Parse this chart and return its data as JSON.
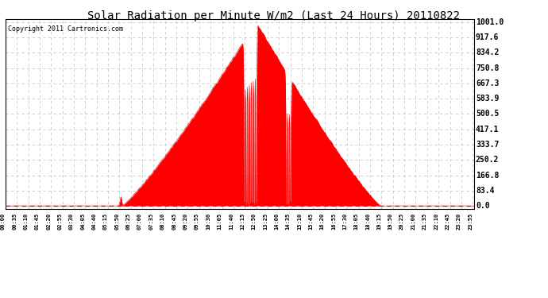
{
  "title": "Solar Radiation per Minute W/m2 (Last 24 Hours) 20110822",
  "copyright_text": "Copyright 2011 Cartronics.com",
  "background_color": "#ffffff",
  "plot_bg_color": "#ffffff",
  "bar_color": "#ff0000",
  "dashed_line_color": "#ff0000",
  "grid_color": "#c8c8c8",
  "yticks": [
    0.0,
    83.4,
    166.8,
    250.2,
    333.7,
    417.1,
    500.5,
    583.9,
    667.3,
    750.8,
    834.2,
    917.6,
    1001.0
  ],
  "ymax": 1001.0,
  "ymin": 0.0,
  "total_minutes": 1440,
  "sunrise_minute": 358,
  "sunset_minute": 1152,
  "peak_minute": 770,
  "peak_value": 1001.0,
  "tick_interval": 35,
  "title_fontsize": 10,
  "copyright_fontsize": 6,
  "ytick_fontsize": 7,
  "xtick_fontsize": 5
}
